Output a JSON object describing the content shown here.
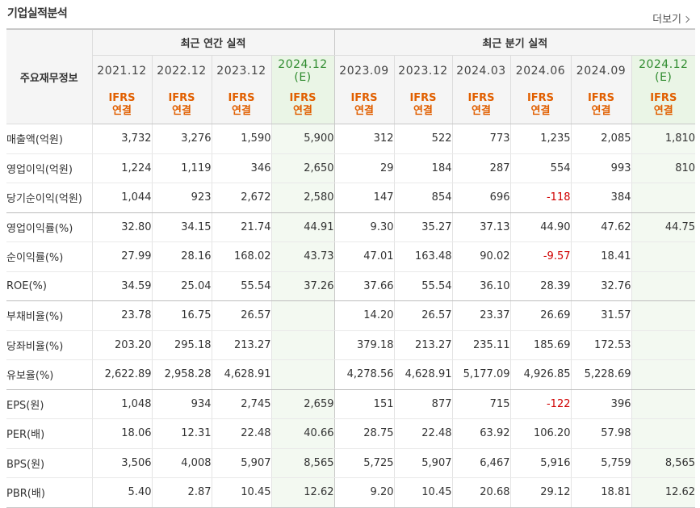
{
  "header": {
    "title": "기업실적분석",
    "more_label": "더보기"
  },
  "table": {
    "item_header": "주요재무정보",
    "groups": [
      "최근 연간 실적",
      "최근 분기 실적"
    ],
    "columns": [
      {
        "period": "2021.12",
        "est": ""
      },
      {
        "period": "2022.12",
        "est": ""
      },
      {
        "period": "2023.12",
        "est": ""
      },
      {
        "period": "2024.12",
        "est": "(E)"
      },
      {
        "period": "2023.09",
        "est": ""
      },
      {
        "period": "2023.12",
        "est": ""
      },
      {
        "period": "2024.03",
        "est": ""
      },
      {
        "period": "2024.06",
        "est": ""
      },
      {
        "period": "2024.09",
        "est": ""
      },
      {
        "period": "2024.12",
        "est": "(E)"
      }
    ],
    "basis_line1": "IFRS",
    "basis_line2": "연결",
    "rows": [
      {
        "label": "매출액(억원)",
        "values": [
          "3,732",
          "3,276",
          "1,590",
          "5,900",
          "312",
          "522",
          "773",
          "1,235",
          "2,085",
          "1,810"
        ]
      },
      {
        "label": "영업이익(억원)",
        "values": [
          "1,224",
          "1,119",
          "346",
          "2,650",
          "29",
          "184",
          "287",
          "554",
          "993",
          "810"
        ]
      },
      {
        "label": "당기순이익(억원)",
        "values": [
          "1,044",
          "923",
          "2,672",
          "2,580",
          "147",
          "854",
          "696",
          "-118",
          "384",
          ""
        ]
      },
      {
        "label": "영업이익률(%)",
        "values": [
          "32.80",
          "34.15",
          "21.74",
          "44.91",
          "9.30",
          "35.27",
          "37.13",
          "44.90",
          "47.62",
          "44.75"
        ]
      },
      {
        "label": "순이익률(%)",
        "values": [
          "27.99",
          "28.16",
          "168.02",
          "43.73",
          "47.01",
          "163.48",
          "90.02",
          "-9.57",
          "18.41",
          ""
        ]
      },
      {
        "label": "ROE(%)",
        "values": [
          "34.59",
          "25.04",
          "55.54",
          "37.26",
          "37.66",
          "55.54",
          "36.10",
          "28.39",
          "32.76",
          ""
        ]
      },
      {
        "label": "부채비율(%)",
        "values": [
          "23.78",
          "16.75",
          "26.57",
          "",
          "14.20",
          "26.57",
          "23.37",
          "26.69",
          "31.57",
          ""
        ]
      },
      {
        "label": "당좌비율(%)",
        "values": [
          "203.20",
          "295.18",
          "213.27",
          "",
          "379.18",
          "213.27",
          "235.11",
          "185.69",
          "172.53",
          ""
        ]
      },
      {
        "label": "유보율(%)",
        "values": [
          "2,622.89",
          "2,958.28",
          "4,628.91",
          "",
          "4,278.56",
          "4,628.91",
          "5,177.09",
          "4,926.85",
          "5,228.69",
          ""
        ]
      },
      {
        "label": "EPS(원)",
        "values": [
          "1,048",
          "934",
          "2,745",
          "2,659",
          "151",
          "877",
          "715",
          "-122",
          "396",
          ""
        ]
      },
      {
        "label": "PER(배)",
        "values": [
          "18.06",
          "12.31",
          "22.48",
          "40.66",
          "28.75",
          "22.48",
          "63.92",
          "106.20",
          "57.98",
          ""
        ]
      },
      {
        "label": "BPS(원)",
        "values": [
          "3,506",
          "4,008",
          "5,907",
          "8,565",
          "5,725",
          "5,907",
          "6,467",
          "5,916",
          "5,759",
          "8,565"
        ]
      },
      {
        "label": "PBR(배)",
        "values": [
          "5.40",
          "2.87",
          "10.45",
          "12.62",
          "9.20",
          "10.45",
          "20.68",
          "29.12",
          "18.81",
          "12.62"
        ]
      }
    ],
    "group_break_after": [
      2,
      5,
      8
    ],
    "colors": {
      "basis": "#e15f00",
      "estimate": "#2e8b2e",
      "negative": "#d00000",
      "estimate_bg": "#f3f9f1"
    }
  }
}
